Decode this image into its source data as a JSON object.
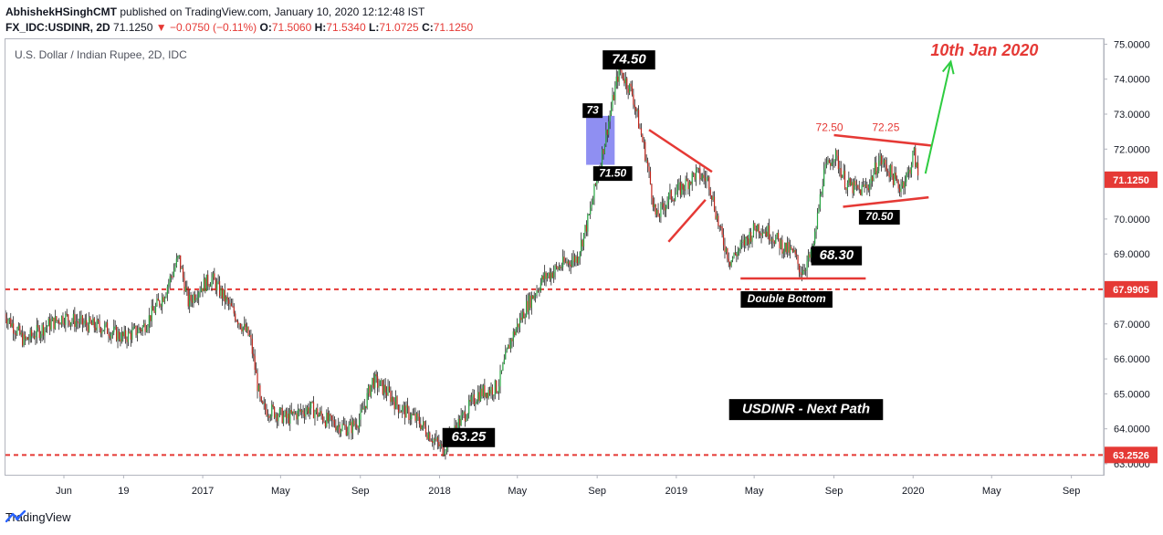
{
  "header": {
    "author": "AbhishekHSinghCMT",
    "published_text": "published on TradingView.com, January 10, 2020 12:12:48 IST",
    "symbol": "FX_IDC:USDINR, 2D",
    "last": "71.1250",
    "change_arrow": "▼",
    "change": "−0.0750 (−0.11%)",
    "o_label": "O:",
    "o_value": "71.5060",
    "h_label": "H:",
    "h_value": "71.5340",
    "l_label": "L:",
    "l_value": "71.0725",
    "c_label": "C:",
    "c_value": "71.1250"
  },
  "footer": {
    "brand": "TradingView",
    "logo_icon": "tradingview-logo-icon"
  },
  "colors": {
    "up": "#26a641",
    "down": "#c2261c",
    "accent_red": "#e53935",
    "green_arrow": "#2ecc40",
    "box": "#7b7bf0"
  },
  "chart_data": {
    "type": "candlestick",
    "title": "U.S. Dollar / Indian Rupee, 2D, IDC",
    "ylim": [
      62.7,
      75.1
    ],
    "price_ticks": [
      "63.0000",
      "64.0000",
      "65.0000",
      "66.0000",
      "67.0000",
      "68.0000",
      "69.0000",
      "70.0000",
      "71.0000",
      "72.0000",
      "73.0000",
      "74.0000",
      "75.0000"
    ],
    "price_tick_values": [
      63,
      64,
      65,
      66,
      67,
      68,
      69,
      70,
      71,
      72,
      73,
      74,
      75
    ],
    "x_ticks": [
      "Jun",
      "19",
      "2017",
      "May",
      "Sep",
      "2018",
      "May",
      "Sep",
      "2019",
      "May",
      "Sep",
      "2020",
      "May",
      "Sep"
    ],
    "x_tick_dates": [
      "2016-06-01",
      "2016-09-01",
      "2017-01-01",
      "2017-05-01",
      "2017-09-01",
      "2018-01-01",
      "2018-05-01",
      "2018-09-01",
      "2019-01-01",
      "2019-05-01",
      "2019-09-01",
      "2020-01-01",
      "2020-05-01",
      "2020-09-01"
    ],
    "series_path": [
      [
        "2016-03-01",
        67.3
      ],
      [
        "2016-04-01",
        66.5
      ],
      [
        "2016-05-01",
        66.9
      ],
      [
        "2016-06-01",
        67.2
      ],
      [
        "2016-07-01",
        67.0
      ],
      [
        "2016-08-01",
        66.9
      ],
      [
        "2016-09-01",
        66.6
      ],
      [
        "2016-10-01",
        66.9
      ],
      [
        "2016-11-01",
        67.8
      ],
      [
        "2016-11-25",
        68.9
      ],
      [
        "2016-12-10",
        67.6
      ],
      [
        "2016-12-25",
        68.0
      ],
      [
        "2017-01-15",
        68.3
      ],
      [
        "2017-02-15",
        67.4
      ],
      [
        "2017-03-15",
        66.6
      ],
      [
        "2017-04-01",
        64.6
      ],
      [
        "2017-04-20",
        64.5
      ],
      [
        "2017-05-10",
        64.3
      ],
      [
        "2017-06-15",
        64.6
      ],
      [
        "2017-07-15",
        64.2
      ],
      [
        "2017-08-15",
        64.0
      ],
      [
        "2017-09-01",
        64.3
      ],
      [
        "2017-09-20",
        65.4
      ],
      [
        "2017-10-10",
        65.1
      ],
      [
        "2017-11-01",
        64.6
      ],
      [
        "2017-12-01",
        64.2
      ],
      [
        "2018-01-05",
        63.4
      ],
      [
        "2018-02-01",
        64.2
      ],
      [
        "2018-03-01",
        65.0
      ],
      [
        "2018-04-01",
        65.2
      ],
      [
        "2018-04-20",
        66.5
      ],
      [
        "2018-05-15",
        67.5
      ],
      [
        "2018-06-10",
        68.3
      ],
      [
        "2018-07-10",
        68.7
      ],
      [
        "2018-08-01",
        68.9
      ],
      [
        "2018-08-20",
        70.1
      ],
      [
        "2018-09-10",
        72.0
      ],
      [
        "2018-10-05",
        74.3
      ],
      [
        "2018-10-25",
        73.6
      ],
      [
        "2018-11-15",
        71.8
      ],
      [
        "2018-12-01",
        70.0
      ],
      [
        "2018-12-20",
        70.6
      ],
      [
        "2019-01-10",
        70.9
      ],
      [
        "2019-01-31",
        71.3
      ],
      [
        "2019-02-20",
        71.1
      ],
      [
        "2019-03-10",
        69.6
      ],
      [
        "2019-03-25",
        68.8
      ],
      [
        "2019-04-15",
        69.3
      ],
      [
        "2019-05-05",
        69.8
      ],
      [
        "2019-05-25",
        69.6
      ],
      [
        "2019-06-15",
        69.2
      ],
      [
        "2019-07-01",
        69.0
      ],
      [
        "2019-07-12",
        68.5
      ],
      [
        "2019-07-30",
        69.0
      ],
      [
        "2019-08-15",
        71.2
      ],
      [
        "2019-09-01",
        71.9
      ],
      [
        "2019-09-20",
        71.0
      ],
      [
        "2019-10-10",
        70.8
      ],
      [
        "2019-10-25",
        71.0
      ],
      [
        "2019-11-10",
        71.7
      ],
      [
        "2019-11-25",
        71.4
      ],
      [
        "2019-12-10",
        70.9
      ],
      [
        "2019-12-25",
        71.3
      ],
      [
        "2020-01-02",
        71.9
      ],
      [
        "2020-01-10",
        71.1
      ]
    ],
    "current_price": {
      "label": "71.1250",
      "value": 71.125
    },
    "horizontal_lines": [
      {
        "label": "67.9905",
        "value": 67.9905,
        "color": "#e53935"
      },
      {
        "label": "63.2526",
        "value": 63.2526,
        "color": "#e53935"
      }
    ],
    "annotations": {
      "high": {
        "text": "74.50",
        "date": "2018-10-20",
        "price": 74.55
      },
      "low": {
        "text": "63.25",
        "date": "2018-02-15",
        "price": 63.75
      },
      "box_top": {
        "text": "73",
        "date": "2018-08-25",
        "price": 73.1
      },
      "box_bottom": {
        "text": "71.50",
        "date": "2018-09-25",
        "price": 71.3
      },
      "double_bottom_level": {
        "text": "68.30",
        "date": "2019-09-05",
        "price": 68.95
      },
      "double_bottom": {
        "text": "Double Bottom",
        "date": "2019-06-20",
        "price": 67.7
      },
      "tri_top_left": {
        "text": "72.50",
        "date": "2019-08-25",
        "price": 72.6
      },
      "tri_top_right": {
        "text": "72.25",
        "date": "2019-11-20",
        "price": 72.6
      },
      "tri_bottom": {
        "text": "70.50",
        "date": "2019-11-10",
        "price": 70.05
      },
      "target": {
        "text": "10th Jan 2020",
        "date": "2020-04-20",
        "price": 74.8
      },
      "next_path": {
        "text": "USDINR - Next Path",
        "date": "2019-07-20",
        "price": 64.55
      }
    },
    "trendlines": [
      {
        "from": [
          "2018-11-20",
          72.55
        ],
        "to": [
          "2019-02-25",
          71.35
        ],
        "color": "#e53935"
      },
      {
        "from": [
          "2018-12-20",
          69.35
        ],
        "to": [
          "2019-02-15",
          70.55
        ],
        "color": "#e53935"
      },
      {
        "from": [
          "2019-04-10",
          68.3
        ],
        "to": [
          "2019-10-20",
          68.3
        ],
        "color": "#e53935"
      },
      {
        "from": [
          "2019-09-01",
          72.4
        ],
        "to": [
          "2020-01-30",
          72.1
        ],
        "color": "#e53935"
      },
      {
        "from": [
          "2019-09-15",
          70.35
        ],
        "to": [
          "2020-01-25",
          70.62
        ],
        "color": "#e53935"
      }
    ],
    "target_arrow": {
      "from": [
        "2020-01-20",
        71.3
      ],
      "to": [
        "2020-02-28",
        74.5
      ],
      "color": "#2ecc40"
    },
    "highlight_box": {
      "from": [
        "2018-08-15",
        71.55
      ],
      "to": [
        "2018-09-28",
        72.95
      ],
      "color": "#7b7bf0"
    }
  }
}
